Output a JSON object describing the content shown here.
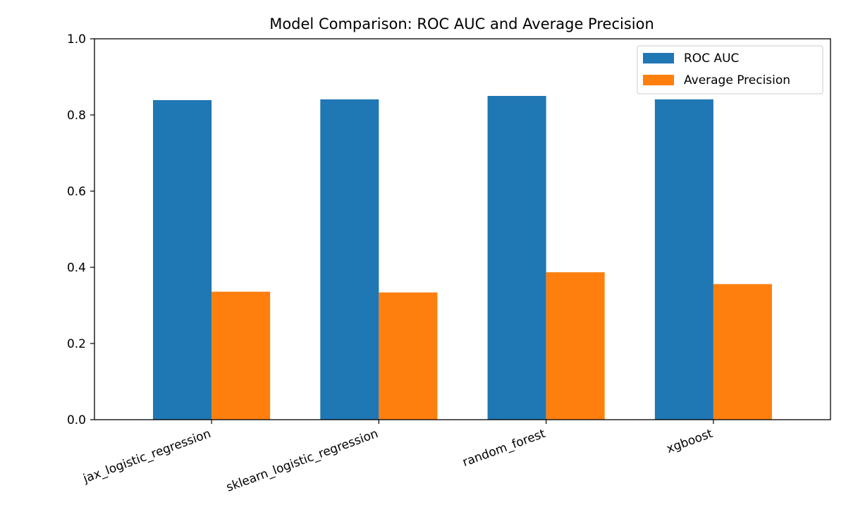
{
  "chart_data": {
    "type": "bar",
    "title": "Model Comparison: ROC AUC and Average Precision",
    "xlabel": "",
    "ylabel": "",
    "categories": [
      "jax_logistic_regression",
      "sklearn_logistic_regression",
      "random_forest",
      "xgboost"
    ],
    "series": [
      {
        "name": "ROC AUC",
        "values": [
          0.839,
          0.841,
          0.85,
          0.841
        ],
        "color": "#1f77b4"
      },
      {
        "name": "Average Precision",
        "values": [
          0.336,
          0.334,
          0.387,
          0.356
        ],
        "color": "#ff7f0e"
      }
    ],
    "ylim": [
      0,
      1
    ],
    "yticks": [
      "0.0",
      "0.2",
      "0.4",
      "0.6",
      "0.8",
      "1.0"
    ],
    "ytick_values": [
      0,
      0.2,
      0.4,
      0.6,
      0.8,
      1.0
    ],
    "grid": false,
    "legend_position": "top-right"
  }
}
